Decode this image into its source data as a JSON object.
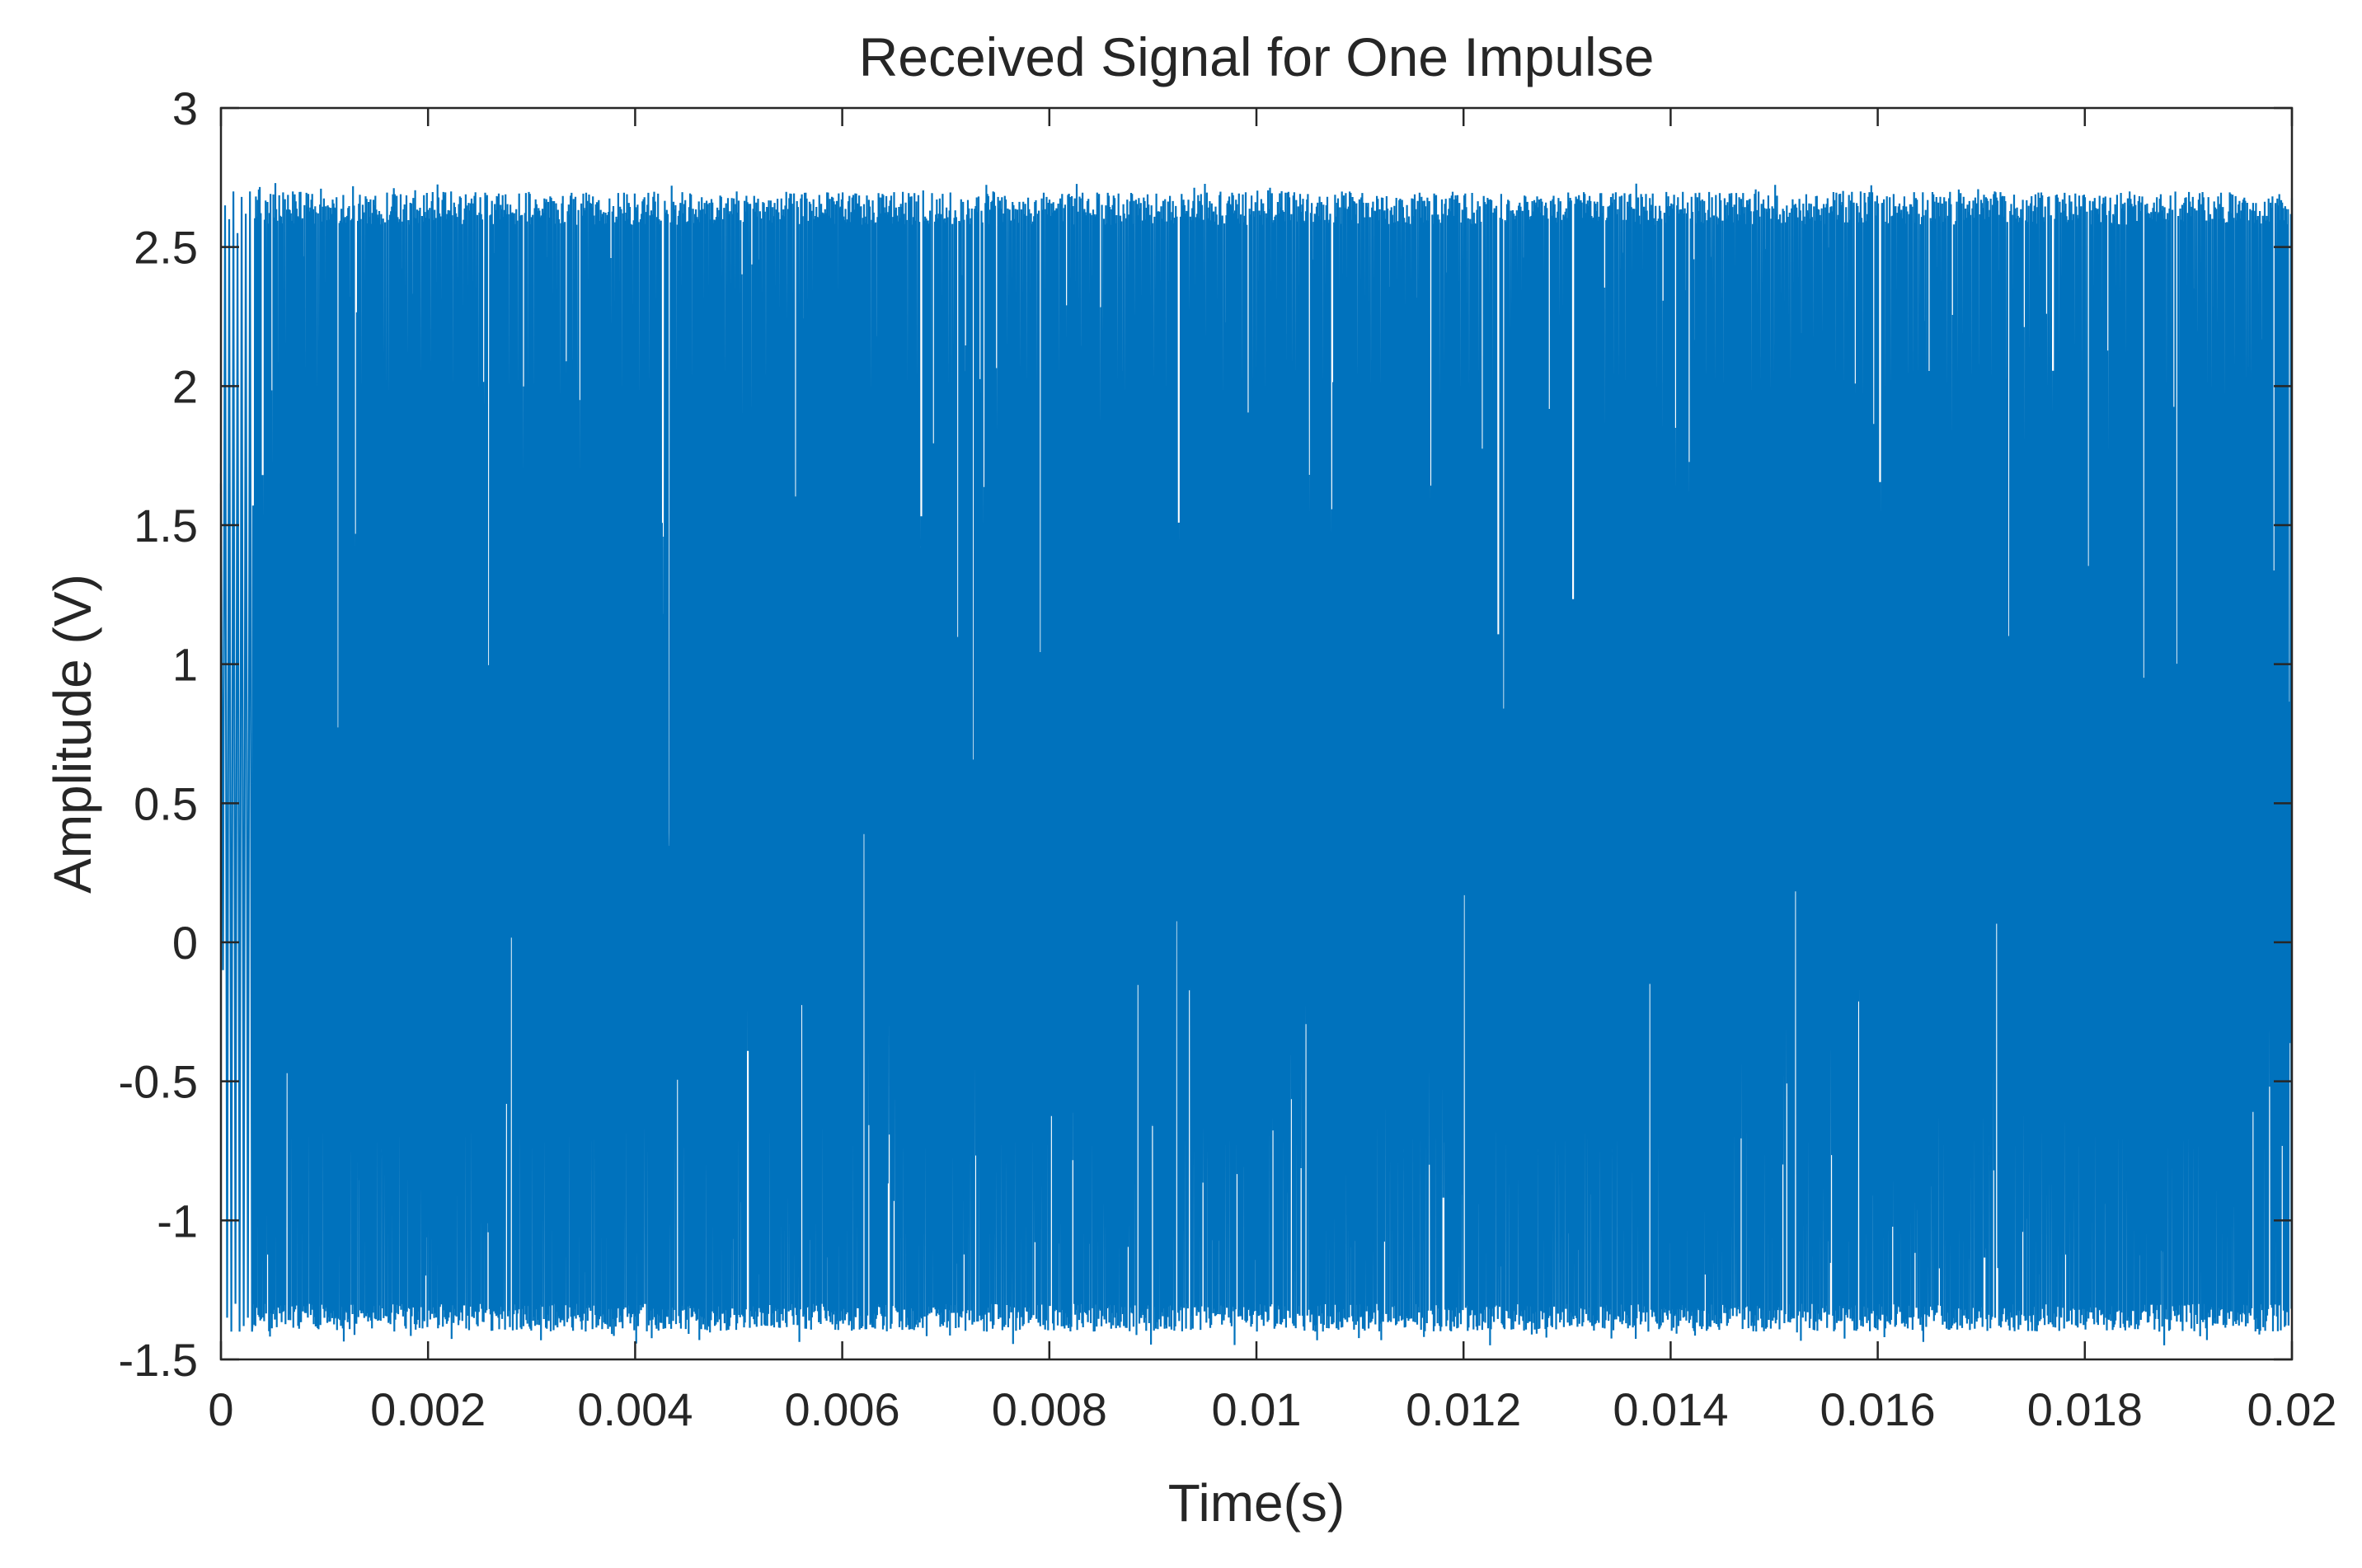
{
  "chart_data": {
    "type": "line",
    "title": "Received Signal for One Impulse",
    "xlabel": "Time(s)",
    "ylabel": "Amplitude (V)",
    "xlim": [
      0,
      0.02
    ],
    "ylim": [
      -1.5,
      3
    ],
    "xticks": [
      0,
      0.002,
      0.004,
      0.006,
      0.008,
      0.01,
      0.012,
      0.014,
      0.016,
      0.018,
      0.02
    ],
    "xtick_labels": [
      "0",
      "0.002",
      "0.004",
      "0.006",
      "0.008",
      "0.01",
      "0.012",
      "0.014",
      "0.016",
      "0.018",
      "0.02"
    ],
    "yticks": [
      -1.5,
      -1,
      -0.5,
      0,
      0.5,
      1,
      1.5,
      2,
      2.5,
      3
    ],
    "ytick_labels": [
      "-1.5",
      "-1",
      "-0.5",
      "0",
      "0.5",
      "1",
      "1.5",
      "2",
      "2.5",
      "3"
    ],
    "grid": false,
    "legend": false,
    "series": [
      {
        "color": "#0072BD",
        "envelope_max": 2.7,
        "envelope_min": -1.4,
        "description_points": {
          "x": [
            0,
            2e-05,
            4e-05,
            6e-05,
            8e-05,
            0.0001,
            0.00012,
            0.00014,
            0.00016,
            0.00018,
            0.0002,
            0.00022,
            0.00024,
            0.00026,
            0.00028,
            0.0003
          ],
          "y": [
            1.65,
            -0.1,
            2.65,
            -1.35,
            2.6,
            -1.4,
            2.7,
            -1.3,
            2.55,
            -1.4,
            2.68,
            -1.38,
            2.62,
            -1.35,
            2.7,
            -1.4
          ]
        }
      }
    ]
  }
}
